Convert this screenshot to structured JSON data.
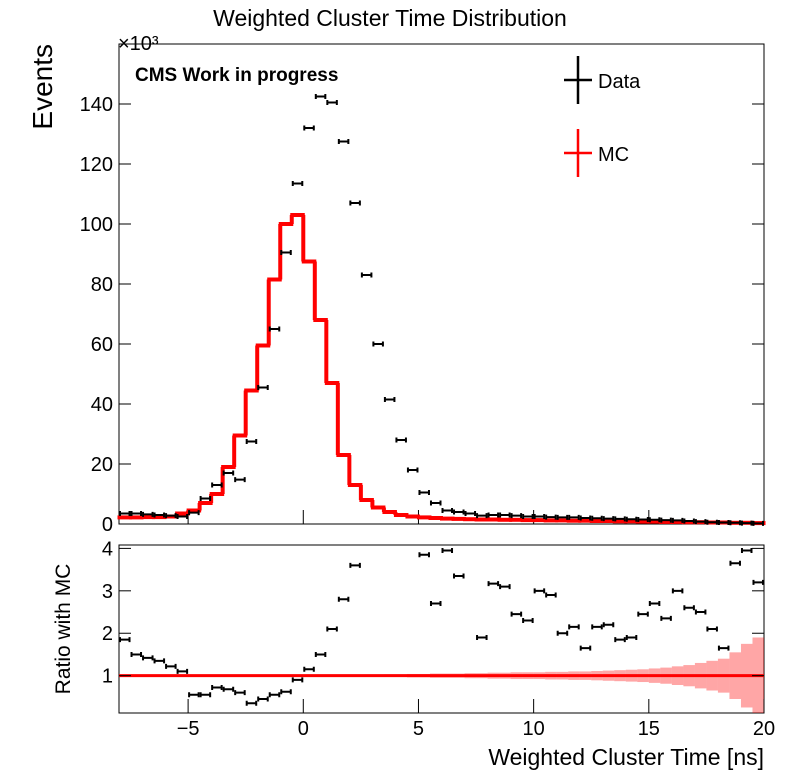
{
  "chart_data": [
    {
      "type": "histogram",
      "title": "Weighted Cluster Time Distribution",
      "y_label": "Events",
      "y_multiplier": "×10³",
      "annotation": "CMS Work in progress",
      "legend": "top-right",
      "bins": [
        -8,
        -7.5,
        -7,
        -6.5,
        -6,
        -5.5,
        -5,
        -4.5,
        -4,
        -3.5,
        -3,
        -2.5,
        -2,
        -1.5,
        -1,
        -0.5,
        0,
        0.5,
        1,
        1.5,
        2,
        2.5,
        3,
        3.5,
        4,
        4.5,
        5,
        5.5,
        6,
        6.5,
        7,
        7.5,
        8,
        8.5,
        9,
        9.5,
        10,
        10.5,
        11,
        11.5,
        12,
        12.5,
        13,
        13.5,
        14,
        14.5,
        15,
        15.5,
        16,
        16.5,
        17,
        17.5,
        18,
        18.5,
        19,
        19.5,
        20
      ],
      "xlim": [
        -8,
        20
      ],
      "ylim": [
        0,
        160
      ],
      "yticks": [
        0,
        20,
        40,
        60,
        80,
        100,
        120,
        140
      ],
      "series": [
        {
          "name": "MC",
          "color": "#ff0000",
          "style": "step",
          "values": [
            2.2,
            2.2,
            2.3,
            2.3,
            2.5,
            3.5,
            4.5,
            7,
            10,
            19,
            29.5,
            44.5,
            59.5,
            81.5,
            100,
            103,
            87.5,
            68,
            47,
            23,
            13,
            8,
            5.5,
            4,
            3,
            2.5,
            2.2,
            2,
            1.8,
            1.7,
            1.6,
            1.5,
            1.5,
            1.4,
            1.4,
            1.3,
            1.3,
            1.2,
            1.2,
            1.1,
            1.1,
            1,
            1,
            0.9,
            0.9,
            0.8,
            0.8,
            0.7,
            0.7,
            0.6,
            0.6,
            0.5,
            0.5,
            0.4,
            0.4,
            0.3
          ]
        },
        {
          "name": "Data",
          "color": "#000000",
          "style": "points",
          "values": [
            3.5,
            3.5,
            3.2,
            3.0,
            2.8,
            2.5,
            3.8,
            8.5,
            13,
            17,
            14.8,
            27.5,
            45.5,
            65,
            90.5,
            113.5,
            132,
            142.5,
            140.5,
            127.5,
            107,
            83,
            60,
            41.5,
            28,
            18,
            10.5,
            7,
            4.5,
            4,
            3.5,
            2.8,
            3,
            3,
            2.8,
            2.5,
            2.5,
            2.3,
            2.2,
            2.2,
            2.0,
            1.9,
            1.8,
            1.7,
            1.6,
            1.5,
            1.4,
            1.3,
            1.2,
            1.0,
            0.8,
            0.6,
            0.5,
            0.4,
            0.3,
            0.2
          ]
        }
      ]
    },
    {
      "type": "ratio",
      "x_label": "Weighted Cluster Time [ns]",
      "y_label": "Ratio with MC",
      "xlim": [
        -8,
        20
      ],
      "xticks": [
        {
          "value": -5,
          "label": "−5"
        },
        0,
        5,
        10,
        15,
        20
      ],
      "ylim": [
        0.12,
        4.08
      ],
      "yticks": [
        1,
        2,
        3,
        4
      ],
      "reference": 1,
      "reference_color": "#ff0000",
      "band_errors": [
        0.02,
        0.02,
        0.02,
        0.02,
        0.02,
        0.02,
        0.02,
        0.02,
        0.02,
        0.02,
        0.02,
        0.02,
        0.02,
        0.02,
        0.02,
        0.02,
        0.02,
        0.02,
        0.02,
        0.02,
        0.02,
        0.02,
        0.02,
        0.03,
        0.03,
        0.04,
        0.04,
        0.05,
        0.05,
        0.05,
        0.06,
        0.06,
        0.07,
        0.07,
        0.08,
        0.08,
        0.08,
        0.09,
        0.09,
        0.1,
        0.1,
        0.11,
        0.12,
        0.13,
        0.14,
        0.15,
        0.17,
        0.19,
        0.22,
        0.25,
        0.3,
        0.35,
        0.4,
        0.55,
        0.75,
        0.9
      ],
      "color": "#000000",
      "values": [
        1.85,
        1.5,
        1.42,
        1.35,
        1.22,
        1.1,
        0.55,
        0.55,
        0.72,
        0.68,
        0.6,
        0.35,
        0.45,
        0.55,
        0.62,
        0.9,
        1.15,
        1.5,
        2.1,
        2.8,
        3.6,
        null,
        null,
        null,
        null,
        null,
        3.85,
        2.7,
        3.95,
        3.35,
        null,
        1.9,
        3.17,
        3.1,
        2.45,
        2.3,
        3.0,
        2.9,
        2.0,
        2.15,
        1.65,
        2.15,
        2.2,
        1.85,
        1.9,
        2.45,
        2.7,
        2.35,
        3.0,
        2.6,
        2.5,
        2.1,
        1.65,
        3.65,
        3.95,
        3.2
      ]
    }
  ]
}
